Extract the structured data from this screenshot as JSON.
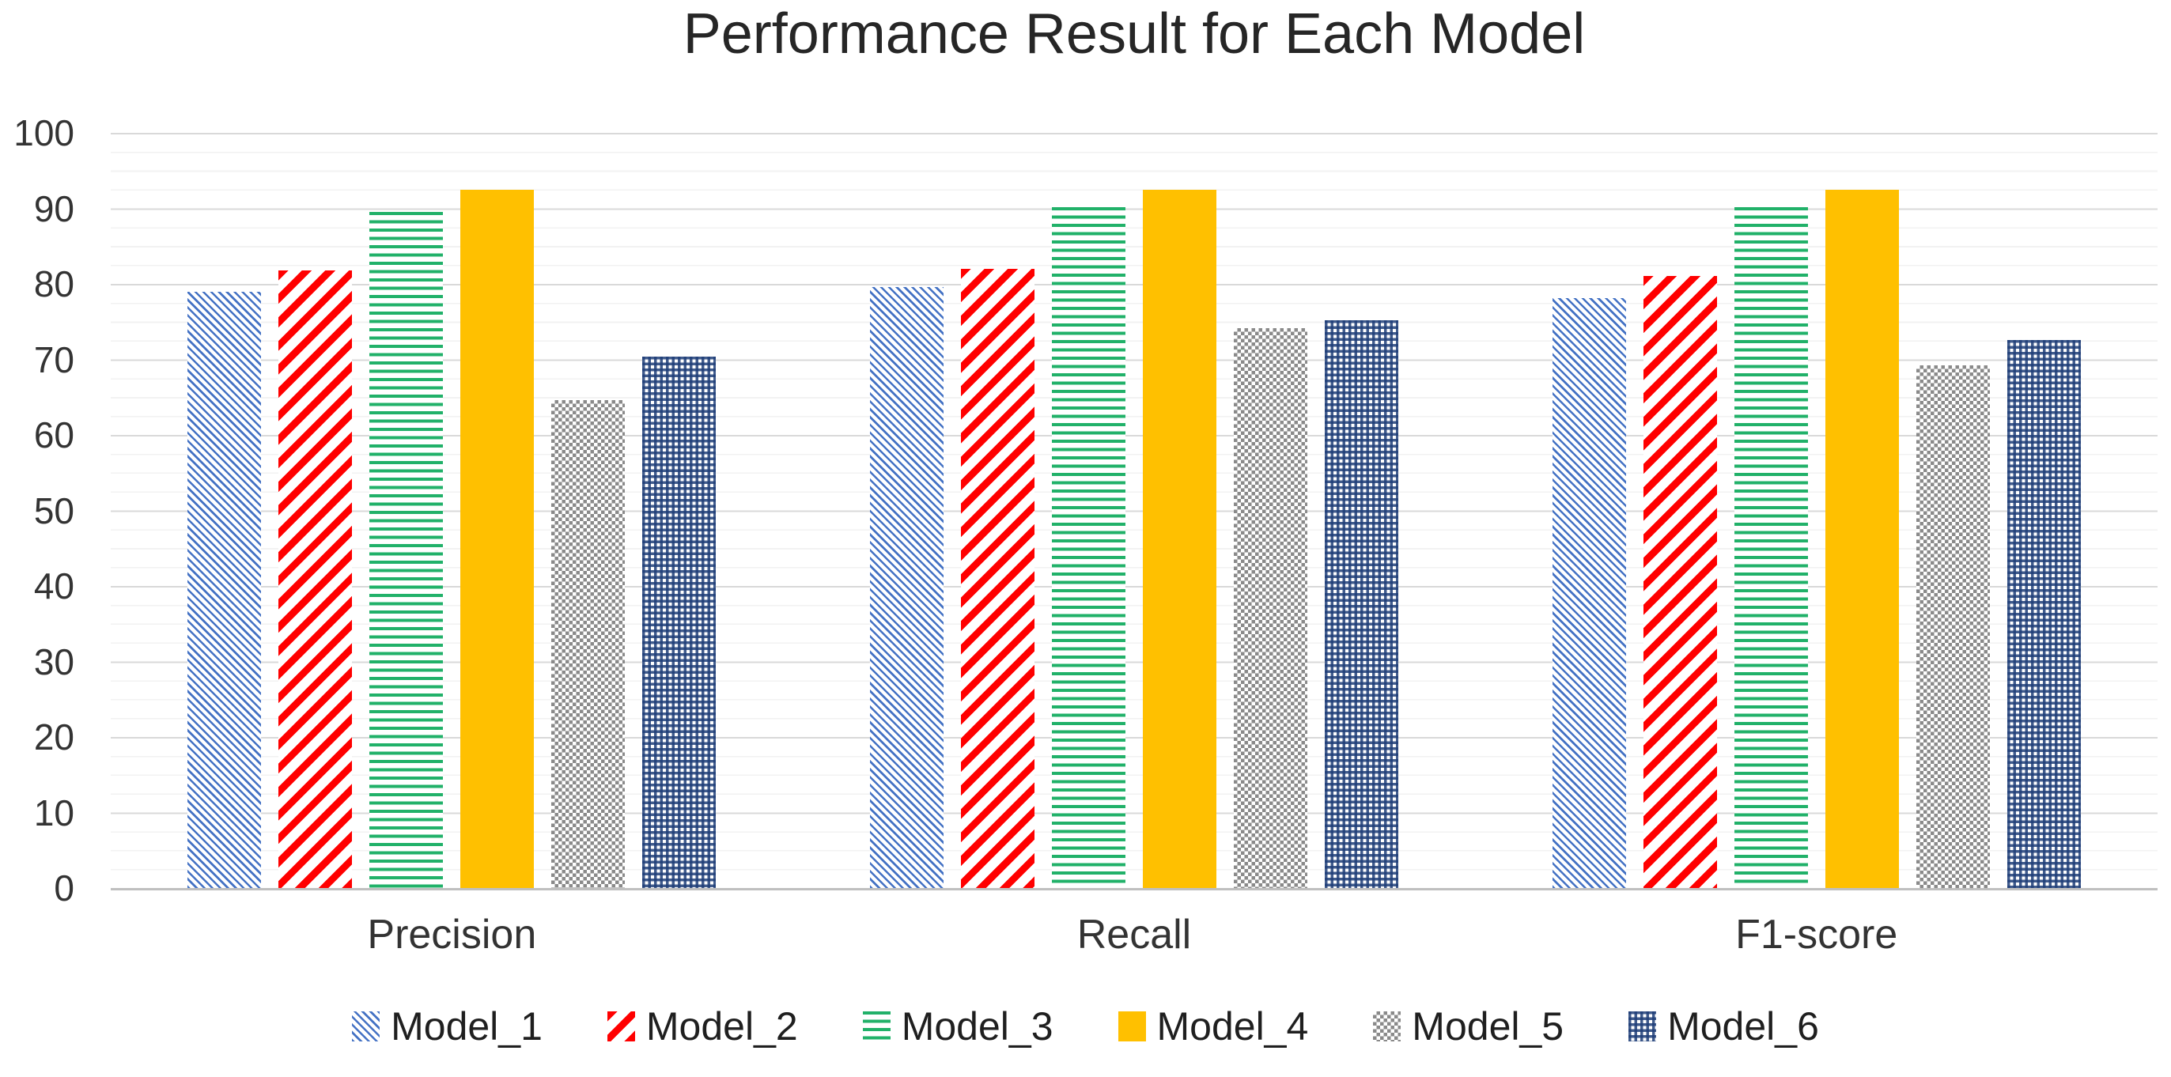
{
  "chart_data": {
    "type": "bar",
    "title": "Performance Result for Each Model",
    "categories": [
      "Precision",
      "Recall",
      "F1-score"
    ],
    "series": [
      {
        "name": "Model_1",
        "values": [
          79.0,
          79.6,
          78.1
        ],
        "color": "#4472C4",
        "pattern": "diagonal-down"
      },
      {
        "name": "Model_2",
        "values": [
          81.8,
          82.0,
          81.0
        ],
        "color": "#FF0000",
        "pattern": "diagonal-up"
      },
      {
        "name": "Model_3",
        "values": [
          89.5,
          90.2,
          90.2
        ],
        "color": "#21B169",
        "pattern": "horizontal-lines"
      },
      {
        "name": "Model_4",
        "values": [
          92.5,
          92.5,
          92.5
        ],
        "color": "#FFC000",
        "pattern": "solid"
      },
      {
        "name": "Model_5",
        "values": [
          64.6,
          74.1,
          69.2
        ],
        "color": "#808080",
        "pattern": "checker"
      },
      {
        "name": "Model_6",
        "values": [
          70.4,
          75.2,
          72.6
        ],
        "color": "#1F3E78",
        "pattern": "grid"
      }
    ],
    "ylim": [
      0,
      100
    ],
    "y_ticks": [
      0,
      10,
      20,
      30,
      40,
      50,
      60,
      70,
      80,
      90,
      100
    ],
    "y_minor_step": 2.5,
    "grid": "horizontal, major and minor, light gray",
    "legend_position": "bottom",
    "axis_text_color": "#333333",
    "major_grid_color": "#d9d9d9",
    "minor_grid_color": "#f2f2f2",
    "baseline_color": "#bfbfbf"
  }
}
